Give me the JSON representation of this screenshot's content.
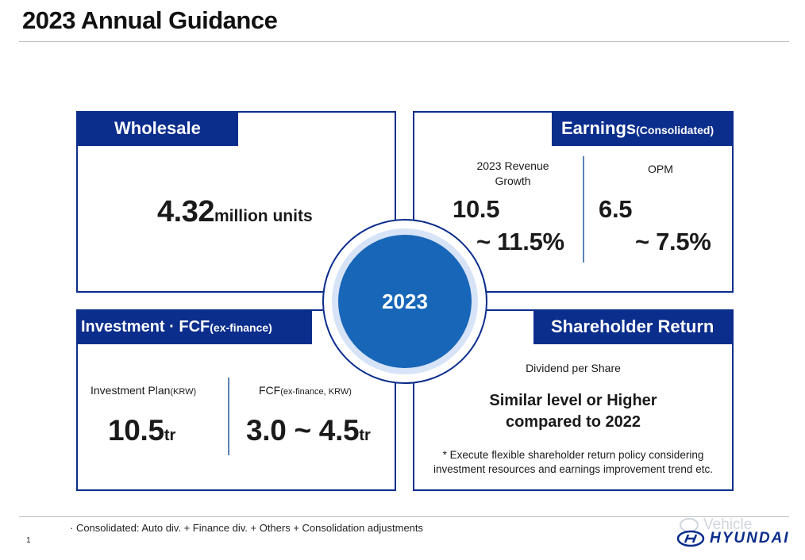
{
  "title": "2023 Annual Guidance",
  "wholesale": {
    "header": "Wholesale",
    "value": "4.32",
    "unit": "million units"
  },
  "earnings": {
    "header": "Earnings",
    "header_note": "(Consolidated)",
    "revenue_label": "2023 Revenue Growth",
    "revenue_low": "10.5",
    "revenue_high": "~ 11.5%",
    "opm_label": "OPM",
    "opm_low": "6.5",
    "opm_high": "~ 7.5%"
  },
  "center": {
    "year": "2023"
  },
  "investment": {
    "header": "Investment · FCF",
    "header_note": "(ex-finance)",
    "plan_label": "Investment Plan",
    "plan_label_note": "(KRW)",
    "plan_value": "10.5",
    "plan_unit": "tr",
    "fcf_label": "FCF",
    "fcf_label_note": "(ex-finance, KRW)",
    "fcf_value": "3.0 ~ 4.5",
    "fcf_unit": "tr"
  },
  "shareholder": {
    "header": "Shareholder Return",
    "label": "Dividend per Share",
    "main_line1": "Similar level or Higher",
    "main_line2": "compared to 2022",
    "note_line1": "* Execute flexible shareholder return policy considering",
    "note_line2": "investment resources and earnings improvement trend etc."
  },
  "footnote": "· Consolidated: Auto div. + Finance div. + Others + Consolidation adjustments",
  "page_number": "1",
  "watermark": "Vehicle",
  "logo": "HYUNDAI",
  "colors": {
    "navy": "#0b2d8c",
    "circle_blue": "#1766b8",
    "halo": "#d7e3f7"
  }
}
